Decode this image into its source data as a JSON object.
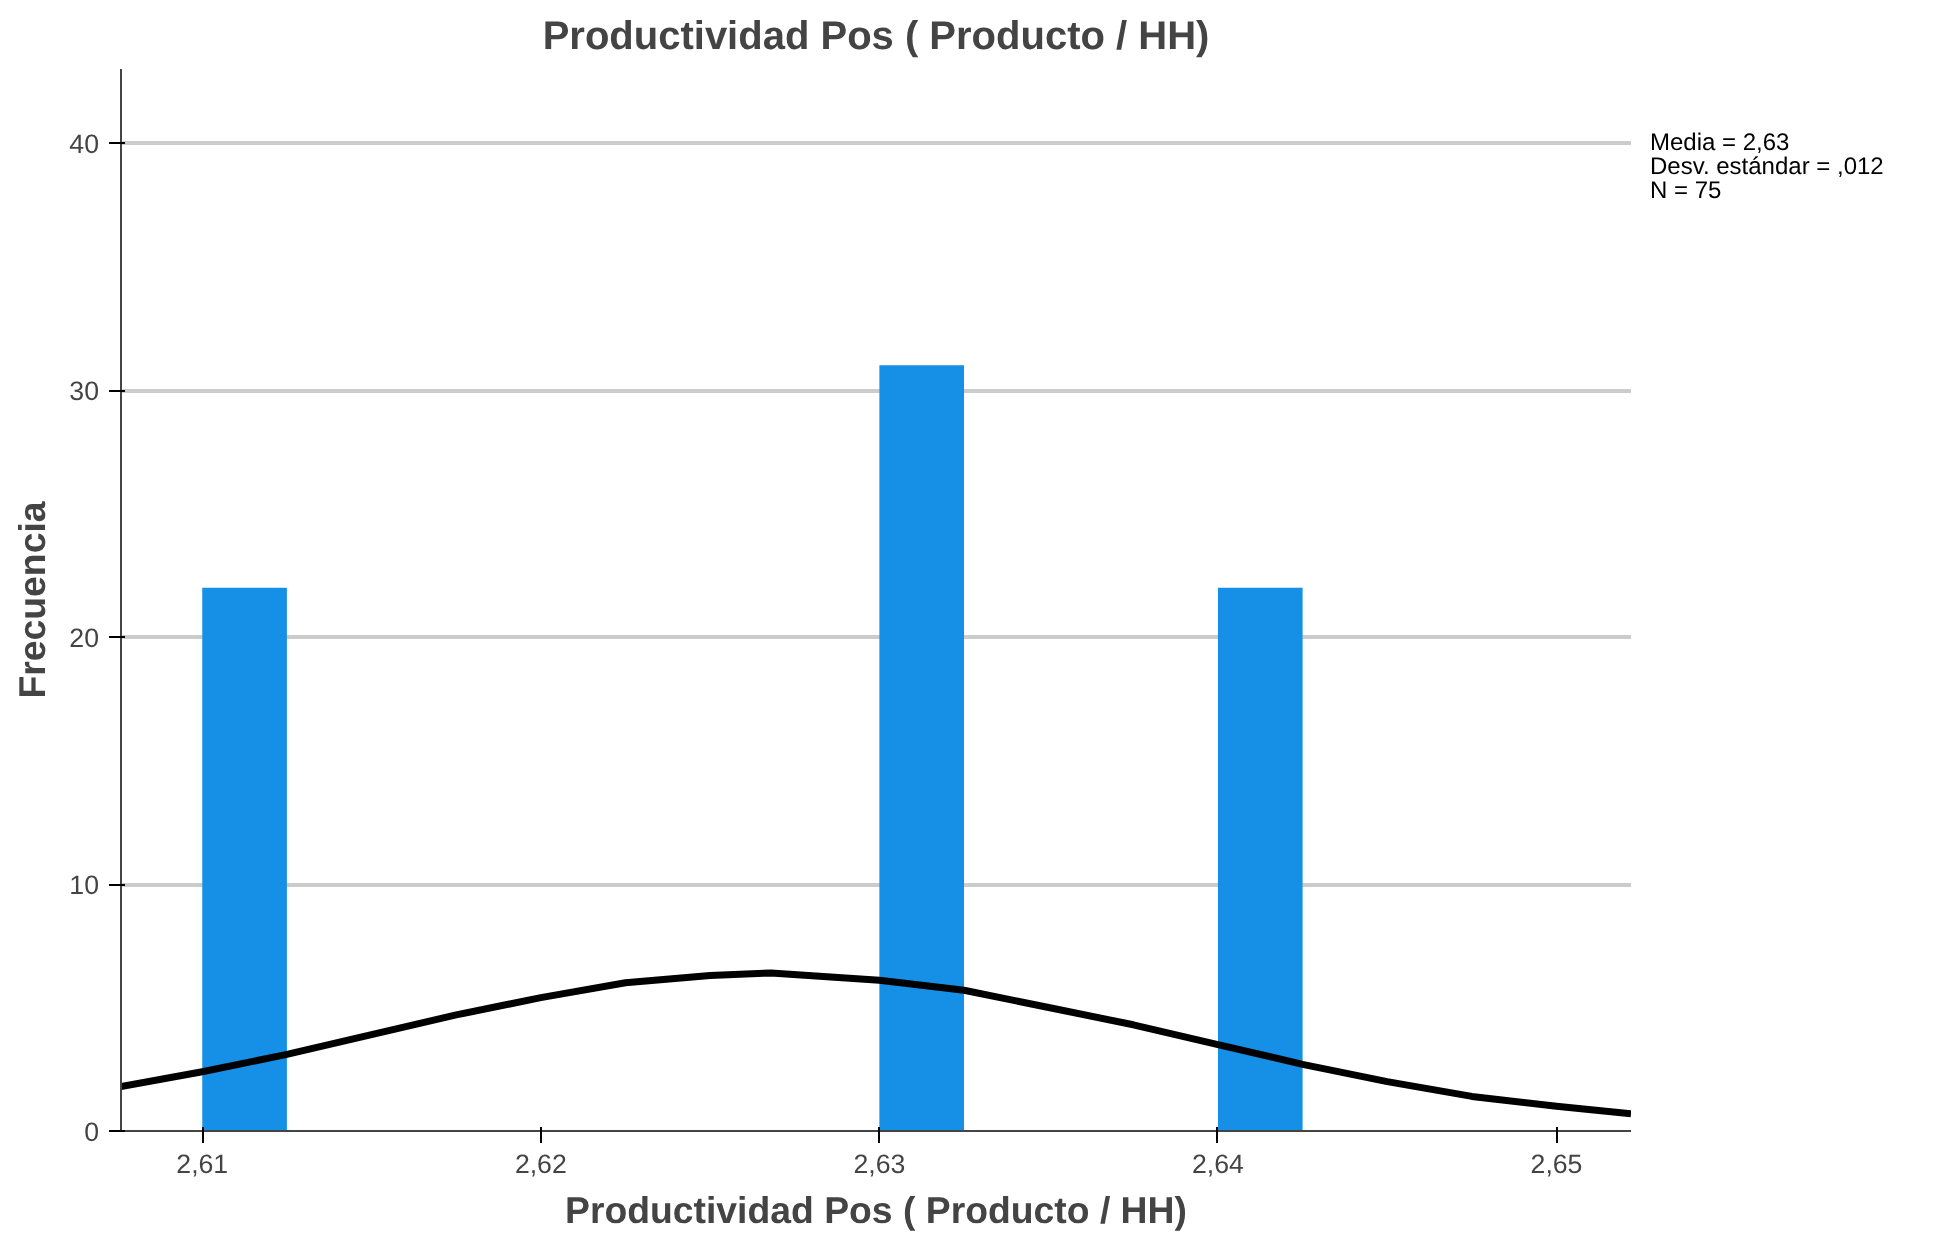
{
  "chart_data": {
    "type": "histogram",
    "title": "Productividad Pos ( Producto / HH)",
    "xlabel": "Productividad Pos ( Producto / HH)",
    "ylabel": "Frecuencia",
    "bins": [
      2.61,
      2.6125,
      2.615,
      2.6175,
      2.62,
      2.6225,
      2.625,
      2.6275,
      2.63,
      2.6325,
      2.635,
      2.6375,
      2.64,
      2.6425
    ],
    "values": [
      22,
      0,
      0,
      0,
      0,
      0,
      0,
      0,
      31,
      0,
      0,
      0,
      22
    ],
    "color": "#1590e6",
    "series": [
      {
        "type": "line",
        "color": "#000000",
        "x": [
          2.6076,
          2.61,
          2.6125,
          2.615,
          2.6175,
          2.62,
          2.6225,
          2.625,
          2.6268,
          2.63,
          2.6325,
          2.635,
          2.6375,
          2.64,
          2.6425,
          2.645,
          2.6475,
          2.65,
          2.6522
        ],
        "values": [
          1.8,
          2.4,
          3.1,
          3.9,
          4.7,
          5.4,
          6.0,
          6.3,
          6.4,
          6.1,
          5.7,
          5.0,
          4.3,
          3.5,
          2.7,
          2.0,
          1.4,
          1.0,
          0.7
        ]
      }
    ],
    "xlim": [
      2.6076,
      2.6522
    ],
    "ylim": [
      0,
      43
    ],
    "xticks": [
      {
        "value": 2.61,
        "label": "2,61"
      },
      {
        "value": 2.62,
        "label": "2,62"
      },
      {
        "value": 2.63,
        "label": "2,63"
      },
      {
        "value": 2.64,
        "label": "2,64"
      },
      {
        "value": 2.65,
        "label": "2,65"
      }
    ],
    "yticks": [
      0,
      10,
      20,
      30,
      40
    ],
    "grid": "y",
    "annotations": [
      "Media = 2,63",
      "Desv. estándar = ,012",
      "N = 75"
    ]
  }
}
